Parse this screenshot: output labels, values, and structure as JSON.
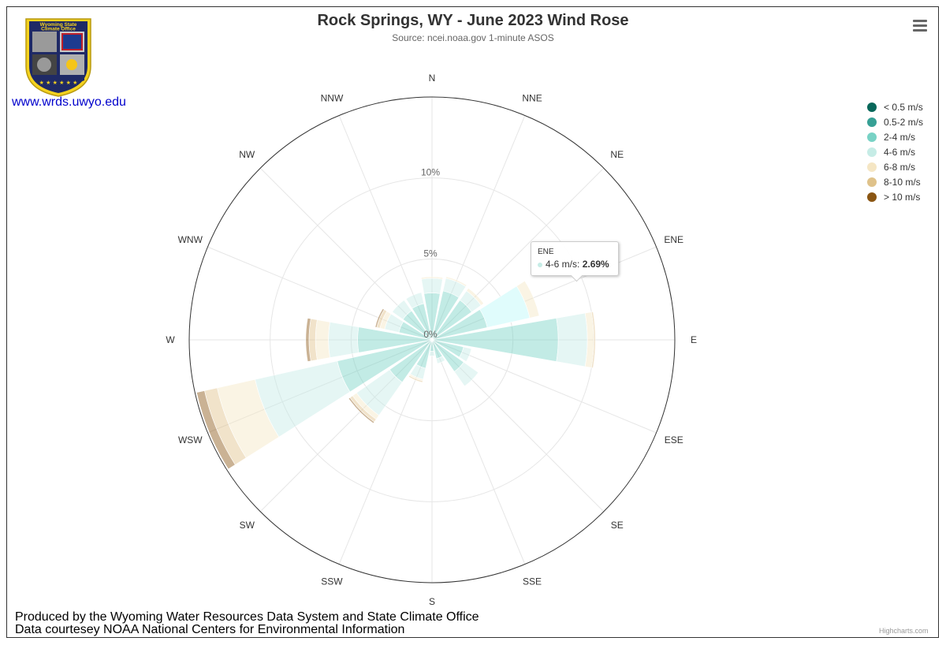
{
  "header": {
    "title": "Rock Springs, WY - June 2023 Wind Rose",
    "subtitle": "Source: ncei.noaa.gov 1-minute ASOS"
  },
  "logo": {
    "text_top": "Wyoming State",
    "text_bottom": "Climate Office"
  },
  "link": "www.wrds.uwyo.edu",
  "menu_icon": "hamburger-menu-icon",
  "footer": {
    "line1": "Produced by the Wyoming Water Resources Data System and State Climate Office",
    "line2": "Data courtesey NOAA National Centers for Environmental Information"
  },
  "credits": "Highcharts.com",
  "tooltip": {
    "direction": "ENE",
    "series": "4-6 m/s",
    "value": "2.69%",
    "color": "#c6ece6"
  },
  "chart_data": {
    "type": "windrose",
    "title": "Rock Springs, WY - June 2023 Wind Rose",
    "subtitle": "Source: ncei.noaa.gov 1-minute ASOS",
    "categories": [
      "N",
      "NNE",
      "NE",
      "ENE",
      "E",
      "ESE",
      "SE",
      "SSE",
      "S",
      "SSW",
      "SW",
      "WSW",
      "W",
      "WNW",
      "NW",
      "NNW"
    ],
    "radial_ticks": [
      "0%",
      "5%",
      "10%"
    ],
    "rmax": 15,
    "stacked": true,
    "legend_position": "right-top",
    "series": [
      {
        "name": "< 0.5 m/s",
        "color": "#08675a",
        "values": [
          0,
          0,
          0,
          0,
          0,
          0,
          0,
          0,
          0,
          0,
          0,
          0,
          0,
          0,
          0,
          0
        ]
      },
      {
        "name": "0.5-2 m/s",
        "color": "#36a095",
        "values": [
          0,
          0,
          0,
          0,
          0,
          0,
          0,
          0,
          0,
          0,
          0,
          0,
          0,
          0,
          0,
          0
        ]
      },
      {
        "name": "2-4 m/s",
        "color": "#78d2c5",
        "values": [
          2.9,
          3.1,
          3.0,
          3.5,
          7.8,
          2.0,
          2.4,
          1.2,
          0.7,
          1.8,
          3.2,
          6.0,
          4.6,
          2.1,
          2.2,
          2.3
        ]
      },
      {
        "name": "4-6 m/s",
        "color": "#c6ece6",
        "values": [
          0.9,
          0.8,
          0.7,
          2.69,
          1.8,
          0.5,
          1.1,
          0.3,
          0.3,
          0.7,
          2.5,
          5.2,
          1.8,
          0.9,
          0.8,
          0.7
        ]
      },
      {
        "name": "6-8 m/s",
        "color": "#f5e6c4",
        "values": [
          0.1,
          0.1,
          0.2,
          0.6,
          0.4,
          0,
          0,
          0,
          0,
          0.1,
          0.3,
          2.4,
          0.8,
          0.3,
          0,
          0
        ]
      },
      {
        "name": "8-10 m/s",
        "color": "#dfc28a",
        "values": [
          0,
          0,
          0,
          0,
          0.1,
          0,
          0,
          0,
          0,
          0.1,
          0.2,
          0.8,
          0.4,
          0.2,
          0,
          0
        ]
      },
      {
        "name": "> 10 m/s",
        "color": "#8a5512",
        "values": [
          0,
          0,
          0,
          0,
          0,
          0,
          0,
          0,
          0,
          0,
          0.1,
          0.5,
          0.2,
          0.1,
          0,
          0
        ]
      }
    ],
    "highlight": {
      "category": "ENE",
      "series": "4-6 m/s"
    }
  }
}
